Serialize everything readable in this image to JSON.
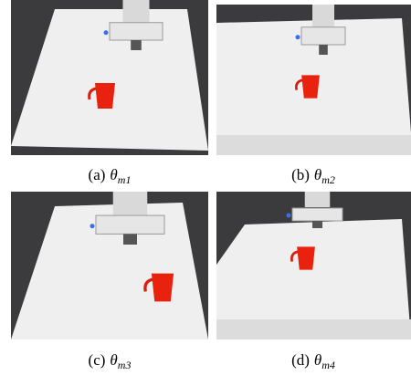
{
  "figure": {
    "panels": [
      {
        "label": "(a)",
        "symbol": "θ",
        "subscript": "m1"
      },
      {
        "label": "(b)",
        "symbol": "θ",
        "subscript": "m2"
      },
      {
        "label": "(c)",
        "symbol": "θ",
        "subscript": "m3"
      },
      {
        "label": "(d)",
        "symbol": "θ",
        "subscript": "m4"
      }
    ]
  }
}
